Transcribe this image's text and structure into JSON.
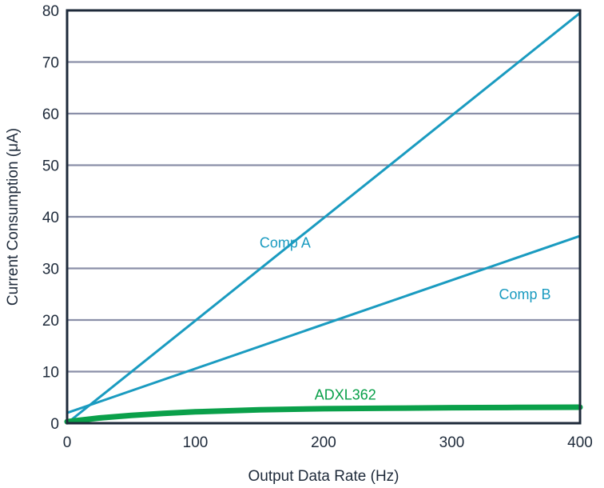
{
  "chart_data": {
    "type": "line",
    "title": "",
    "xlabel": "Output Data Rate (Hz)",
    "ylabel": "Current Consumption (μA)",
    "xlim": [
      0,
      400
    ],
    "ylim": [
      0,
      80
    ],
    "xticks": [
      0,
      100,
      200,
      300,
      400
    ],
    "yticks": [
      0,
      10,
      20,
      30,
      40,
      50,
      60,
      70,
      80
    ],
    "grid": "horizontal",
    "colors": {
      "grid": "#8a8fa8",
      "axis": "#1e2a3a",
      "comp": "#1a9bc0",
      "adxl": "#0aa04a"
    },
    "series": [
      {
        "name": "Comp A",
        "color": "#1a9bc0",
        "width": 3,
        "x": [
          0,
          400
        ],
        "y": [
          0,
          79.5
        ]
      },
      {
        "name": "Comp B",
        "color": "#1a9bc0",
        "width": 3,
        "x": [
          0,
          400
        ],
        "y": [
          2,
          36.3
        ]
      },
      {
        "name": "ADXL362",
        "color": "#0aa04a",
        "width": 7,
        "x": [
          0,
          25,
          50,
          75,
          100,
          150,
          200,
          250,
          300,
          350,
          400
        ],
        "y": [
          0.3,
          1.0,
          1.5,
          1.9,
          2.2,
          2.6,
          2.8,
          2.9,
          3.0,
          3.05,
          3.1
        ]
      }
    ],
    "annotations": [
      {
        "text": "Comp A",
        "x": 170,
        "y": 35,
        "series": 0
      },
      {
        "text": "Comp B",
        "x": 357,
        "y": 25,
        "series": 1
      },
      {
        "text": "ADXL362",
        "x": 217,
        "y": 5.5,
        "series": 2
      }
    ]
  }
}
